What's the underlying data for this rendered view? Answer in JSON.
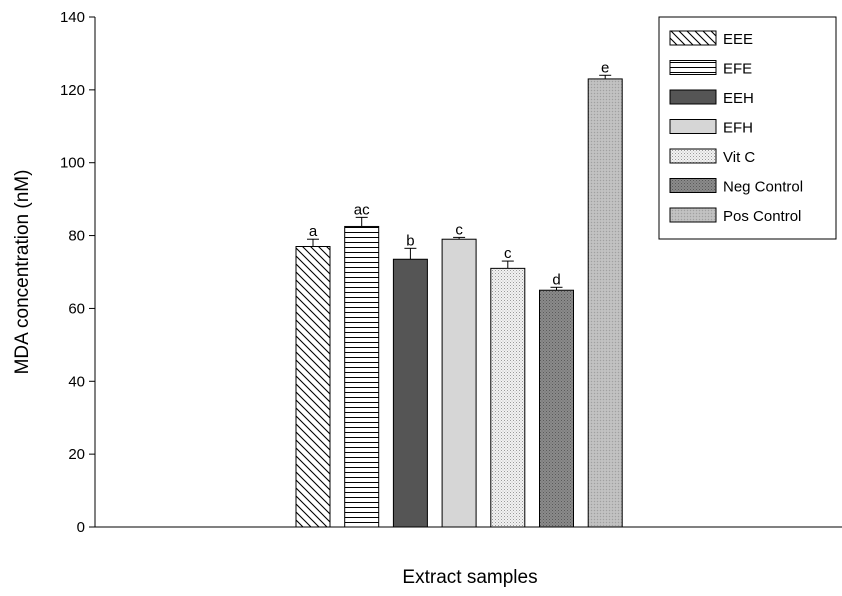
{
  "chart_data": {
    "type": "bar",
    "xlabel": "Extract samples",
    "ylabel": "MDA concentration (nM)",
    "ylim": [
      0,
      140
    ],
    "yticks": [
      "0",
      "20",
      "40",
      "60",
      "80",
      "100",
      "120",
      "140"
    ],
    "grid": false,
    "legend_position": "top-right",
    "series": [
      {
        "name": "EEE",
        "value": 77,
        "error": 2,
        "label": "a",
        "pattern": "diag-hatch"
      },
      {
        "name": "EFE",
        "value": 82.5,
        "error": 2.5,
        "label": "ac",
        "pattern": "horizontal-hatch"
      },
      {
        "name": "EEH",
        "value": 73.5,
        "error": 3,
        "label": "b",
        "pattern": "dark-fill"
      },
      {
        "name": "EFH",
        "value": 79,
        "error": 0.5,
        "label": "c",
        "pattern": "light-gray-fill"
      },
      {
        "name": "Vit C",
        "value": 71,
        "error": 2,
        "label": "c",
        "pattern": "light-dots"
      },
      {
        "name": "Neg Control",
        "value": 65,
        "error": 0.8,
        "label": "d",
        "pattern": "dark-crosshatch"
      },
      {
        "name": "Pos Control",
        "value": 123,
        "error": 1,
        "label": "e",
        "pattern": "medium-dots"
      }
    ]
  }
}
